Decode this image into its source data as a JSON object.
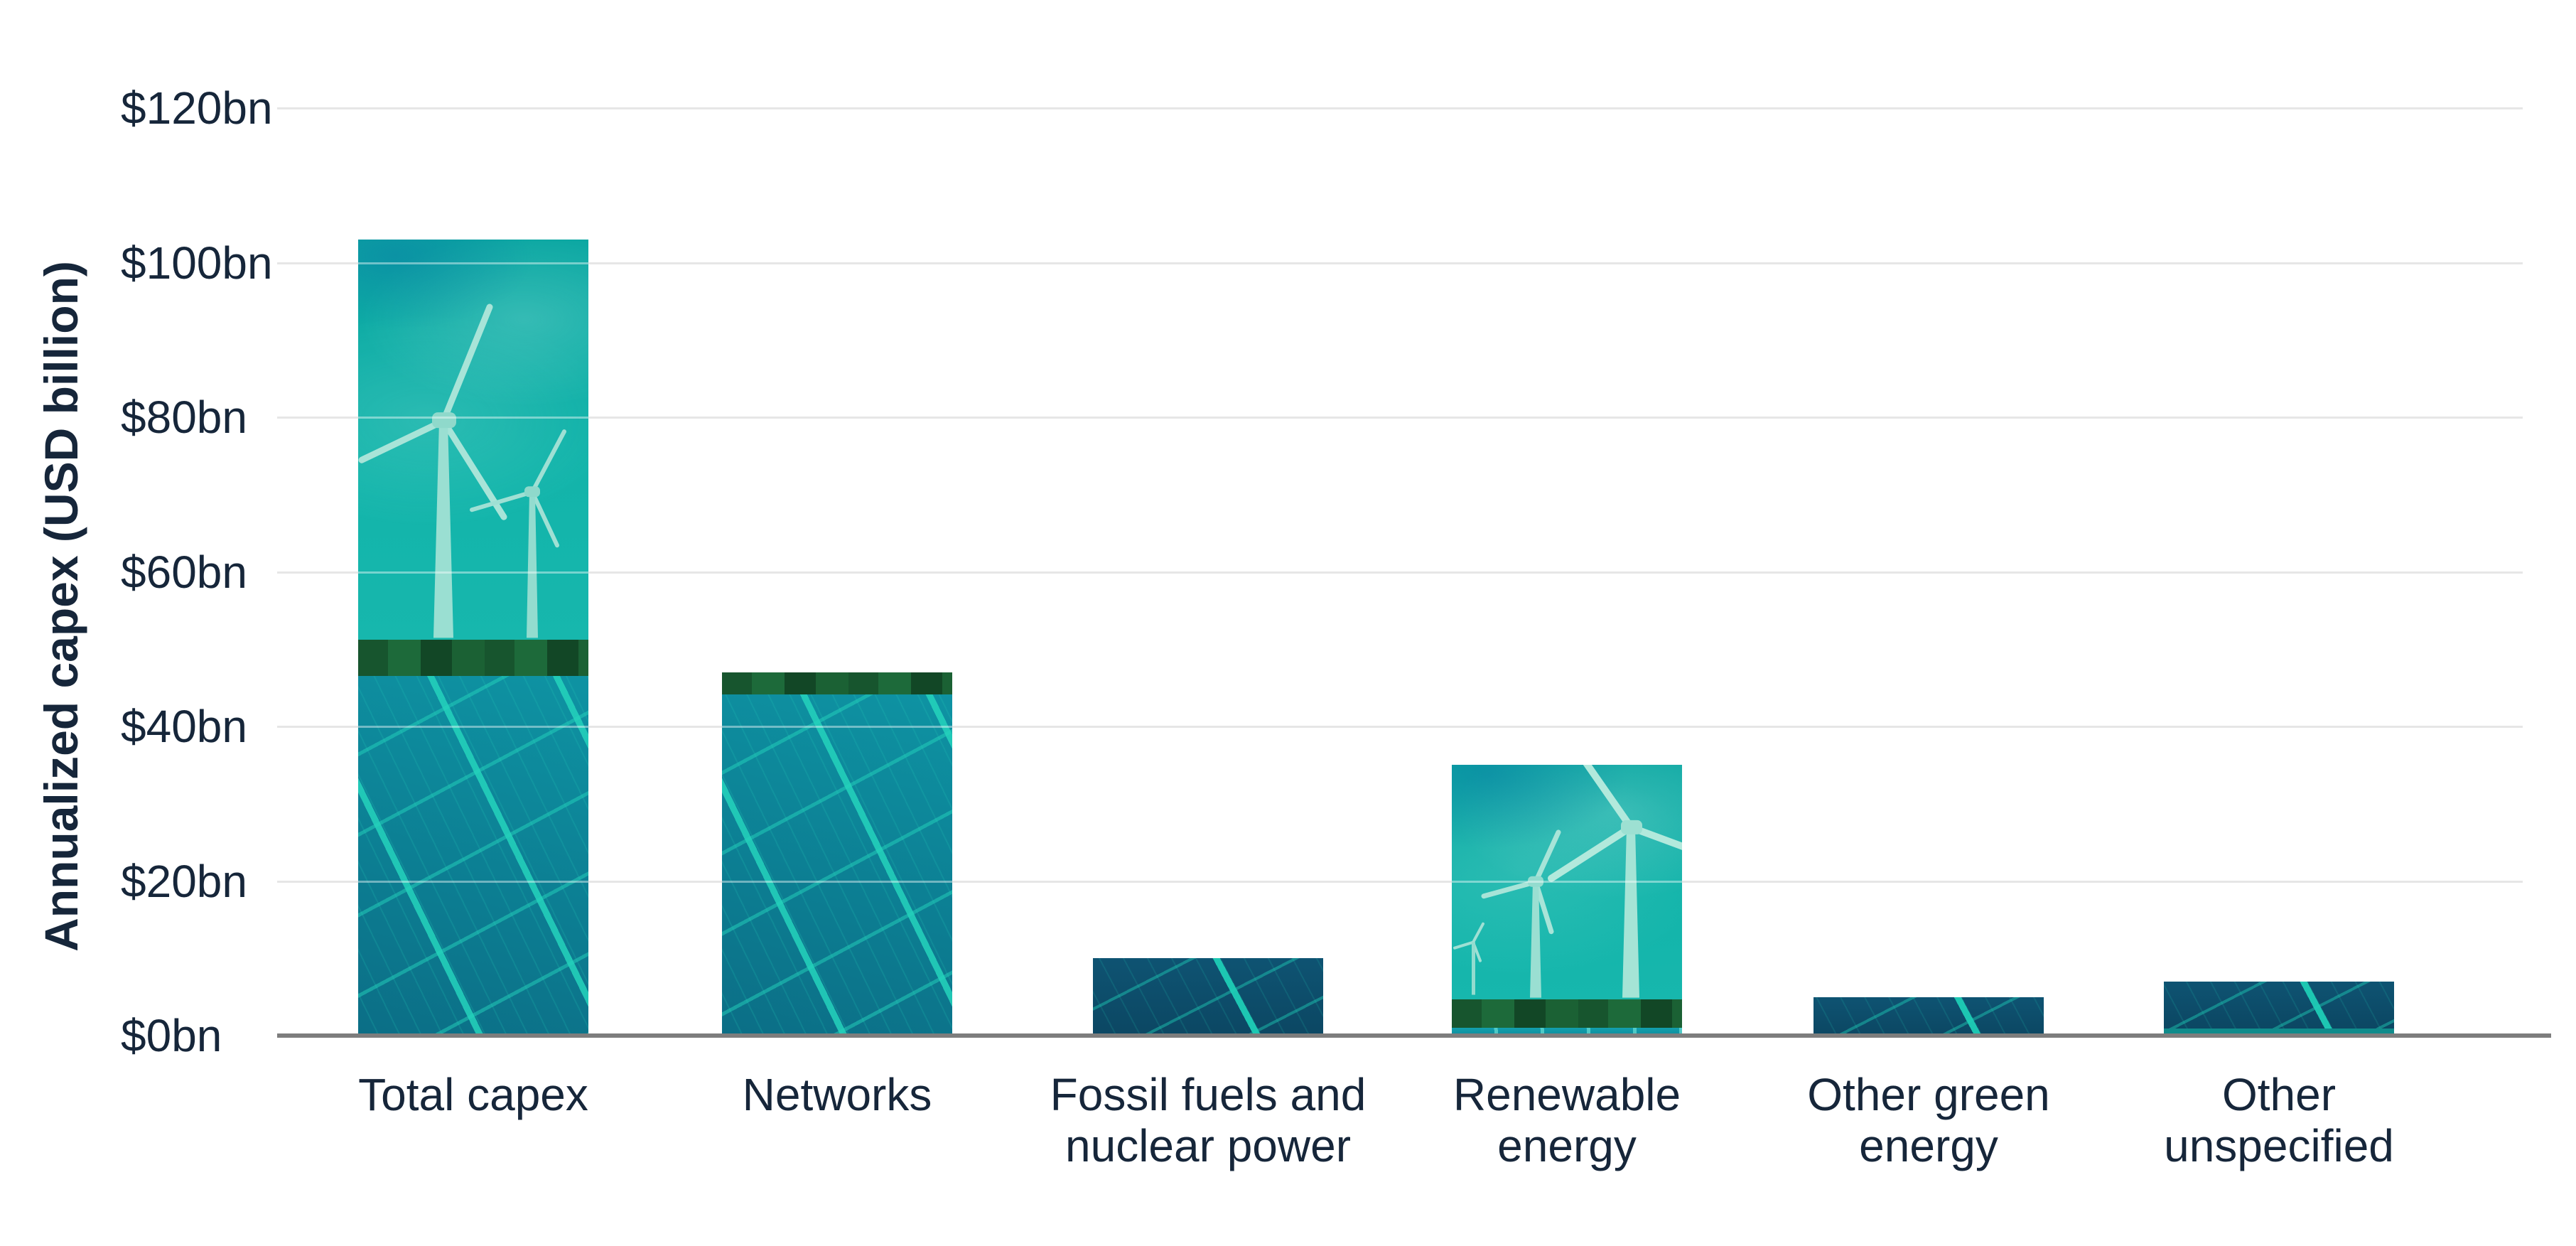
{
  "chart_data": {
    "type": "bar",
    "title": "",
    "categories": [
      "Total capex",
      "Networks",
      "Fossil fuels and nuclear power",
      "Renewable energy",
      "Other green energy",
      "Other unspecified"
    ],
    "values": [
      103,
      47,
      10,
      35,
      5,
      7
    ],
    "unit": "USD billion",
    "xlabel": "",
    "ylabel": "Annualized capex (USD billion)",
    "ylim": [
      0,
      120
    ],
    "ytick_interval": 20,
    "ytick_labels": [
      "$0bn",
      "$20bn",
      "$40bn",
      "$60bn",
      "$80bn",
      "$100bn",
      "$120bn"
    ],
    "grid": "horizontal",
    "legend_position": "none",
    "bar_textures": [
      "wind-turbines-over-solar-panels",
      "solar-panels-teal",
      "solar-panels-dark",
      "wind-turbines",
      "solar-panels-dark",
      "solar-panels-dark"
    ]
  },
  "colors": {
    "background": "#ffffff",
    "text": "#16263a",
    "gridline": "#d5d5d5",
    "axis_line": "#7d7d7d",
    "teal_sky": "#12b4aa",
    "panel_teal": "#0d8396",
    "panel_dark": "#0d4c69",
    "panel_grid_line": "#24cfb6",
    "tree_green": "#1a5c33"
  }
}
